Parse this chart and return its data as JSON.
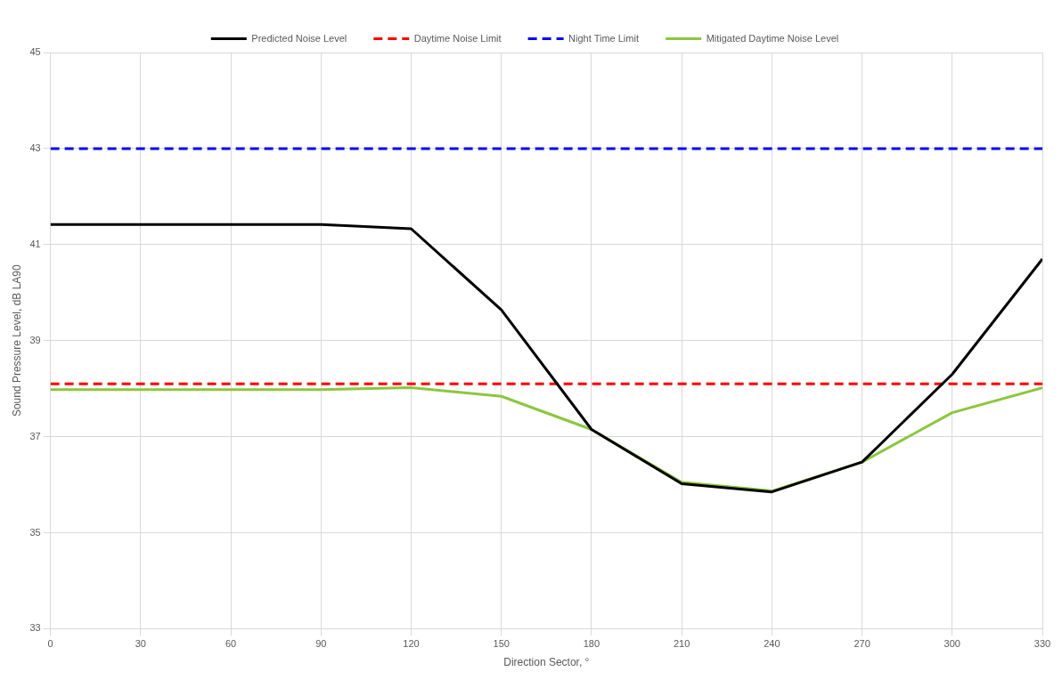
{
  "chart_data": {
    "type": "line",
    "xlabel": "Direction Sector, °",
    "ylabel": "Sound Pressure Level, dB LA90",
    "x": [
      0,
      30,
      60,
      90,
      120,
      150,
      180,
      210,
      240,
      270,
      300,
      330
    ],
    "series": [
      {
        "name": "Predicted Noise Level",
        "color": "#000000",
        "values": [
          41.42,
          41.42,
          41.42,
          41.42,
          41.33,
          39.64,
          37.15,
          36.02,
          35.85,
          36.47,
          38.3,
          40.7
        ]
      },
      {
        "name": "Daytime Noise Limit",
        "color": "#ff0000",
        "line_style": "dashed",
        "values": [
          38.1,
          38.1,
          38.1,
          38.1,
          38.1,
          38.1,
          38.1,
          38.1,
          38.1,
          38.1,
          38.1,
          38.1
        ]
      },
      {
        "name": "Night Time Limit",
        "color": "#0000ff",
        "line_style": "dashed",
        "values": [
          43,
          43,
          43,
          43,
          43,
          43,
          43,
          43,
          43,
          43,
          43,
          43
        ]
      },
      {
        "name": "Mitigated Daytime Noise Level",
        "color": "#8cc63f",
        "values": [
          37.98,
          37.98,
          37.98,
          37.98,
          38.02,
          37.84,
          37.15,
          36.05,
          35.87,
          36.47,
          37.5,
          38.02
        ]
      }
    ],
    "xlim": [
      0,
      330
    ],
    "xticks": [
      0,
      30,
      60,
      90,
      120,
      150,
      180,
      210,
      240,
      270,
      300,
      330
    ],
    "ylim": [
      33,
      45
    ],
    "yticks": [
      33,
      35,
      37,
      39,
      41,
      43,
      45
    ],
    "grid": true,
    "legend": "top",
    "marker": "none",
    "line_style": "solid"
  }
}
